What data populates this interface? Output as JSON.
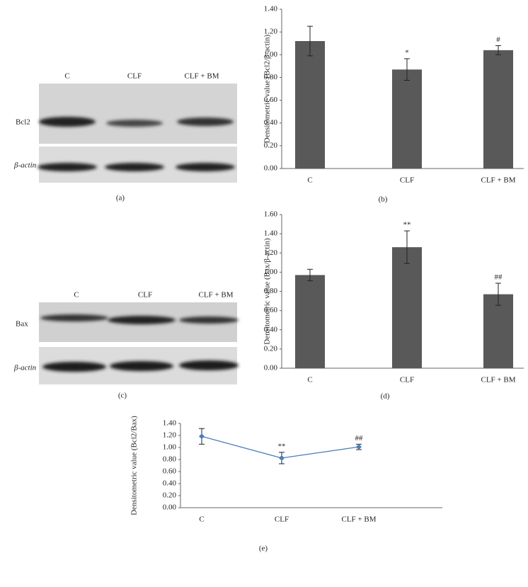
{
  "blots": [
    {
      "panel": "(a)",
      "lanes": [
        "C",
        "CLF",
        "CLF + BM"
      ],
      "rows": [
        "Bcl2",
        "β-actin"
      ]
    },
    {
      "panel": "(c)",
      "lanes": [
        "C",
        "CLF",
        "CLF + BM"
      ],
      "rows": [
        "Bax",
        "β-actin"
      ]
    }
  ],
  "chart_data": [
    {
      "type": "bar",
      "panel": "(b)",
      "y_label": "Densitometric value (Bcl2/β-actin)",
      "categories": [
        "C",
        "CLF",
        "CLF + BM"
      ],
      "values": [
        1.12,
        0.87,
        1.04
      ],
      "errors": [
        0.13,
        0.095,
        0.04
      ],
      "annotations": [
        null,
        "*",
        "#"
      ],
      "color": "#595959",
      "ylim": [
        0,
        1.4
      ],
      "yticks": [
        {
          "value": 0,
          "label": "0.00"
        },
        {
          "value": 0.2,
          "label": "0.20"
        },
        {
          "value": 0.4,
          "label": "0.40"
        },
        {
          "value": 0.6,
          "label": "0.60"
        },
        {
          "value": 0.8,
          "label": "0.80"
        },
        {
          "value": 1,
          "label": "1.00"
        },
        {
          "value": 1.2,
          "label": "1.20"
        },
        {
          "value": 1.4,
          "label": "1.40"
        }
      ]
    },
    {
      "type": "bar",
      "panel": "(d)",
      "y_label": "Densitometric value (Bax/β-actin)",
      "categories": [
        "C",
        "CLF",
        "CLF + BM"
      ],
      "values": [
        0.97,
        1.26,
        0.77
      ],
      "errors": [
        0.06,
        0.17,
        0.115
      ],
      "annotations": [
        null,
        "**",
        "##"
      ],
      "color": "#595959",
      "ylim": [
        0,
        1.6
      ],
      "yticks": [
        {
          "value": 0,
          "label": "0.00"
        },
        {
          "value": 0.2,
          "label": "0.20"
        },
        {
          "value": 0.4,
          "label": "0.40"
        },
        {
          "value": 0.6,
          "label": "0.60"
        },
        {
          "value": 0.8,
          "label": "0.80"
        },
        {
          "value": 1,
          "label": "1.00"
        },
        {
          "value": 1.2,
          "label": "1.20"
        },
        {
          "value": 1.4,
          "label": "1.40"
        },
        {
          "value": 1.6,
          "label": "1.60"
        }
      ]
    },
    {
      "type": "line",
      "panel": "(e)",
      "y_label": "Densitometric value (Bcl2/Bax)",
      "categories": [
        "C",
        "CLF",
        "CLF + BM"
      ],
      "values": [
        1.185,
        0.825,
        1.01
      ],
      "errors": [
        0.13,
        0.095,
        0.045
      ],
      "annotations": [
        null,
        "**",
        "##"
      ],
      "color": "#4a7ebb",
      "ylim": [
        0,
        1.4
      ],
      "yticks": [
        {
          "value": 0,
          "label": "0.00"
        },
        {
          "value": 0.2,
          "label": "0.20"
        },
        {
          "value": 0.4,
          "label": "0.40"
        },
        {
          "value": 0.6,
          "label": "0.60"
        },
        {
          "value": 0.8,
          "label": "0.80"
        },
        {
          "value": 1,
          "label": "1.00"
        },
        {
          "value": 1.2,
          "label": "1.20"
        },
        {
          "value": 1.4,
          "label": "1.40"
        }
      ]
    }
  ]
}
